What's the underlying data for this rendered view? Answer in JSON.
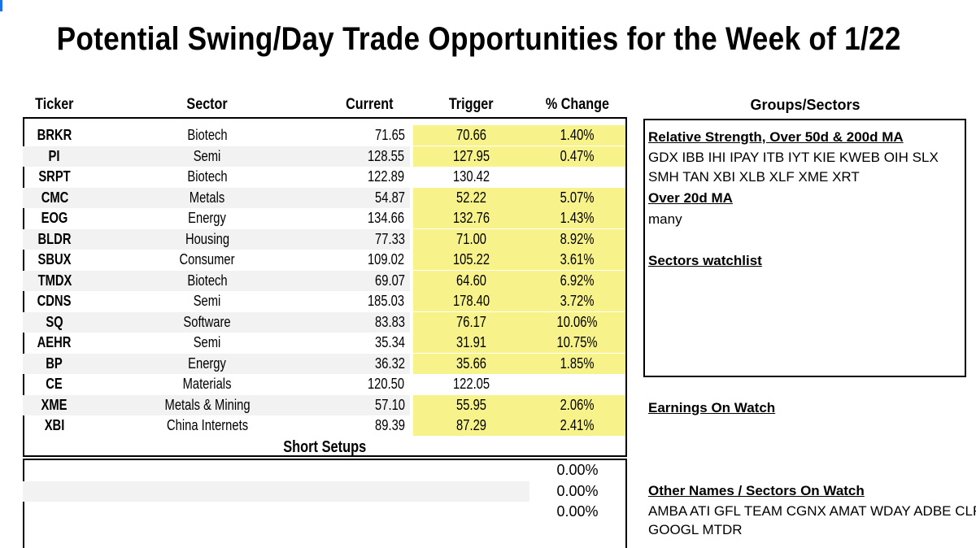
{
  "title": "Potential Swing/Day Trade Opportunities for the Week of 1/22",
  "columns": {
    "ticker": "Ticker",
    "sector": "Sector",
    "current": "Current",
    "trigger": "Trigger",
    "pct": "% Change"
  },
  "colors": {
    "highlight": "#f7f38a",
    "stripe": "#f2f2f2"
  },
  "rows": [
    {
      "ticker": "BRKR",
      "sector": "Biotech",
      "current": "71.65",
      "trigger": "70.66",
      "pct": "1.40%",
      "hl": true
    },
    {
      "ticker": "PI",
      "sector": "Semi",
      "current": "128.55",
      "trigger": "127.95",
      "pct": "0.47%",
      "hl": true
    },
    {
      "ticker": "SRPT",
      "sector": "Biotech",
      "current": "122.89",
      "trigger": "130.42",
      "pct": "",
      "hl": false
    },
    {
      "ticker": "CMC",
      "sector": "Metals",
      "current": "54.87",
      "trigger": "52.22",
      "pct": "5.07%",
      "hl": true
    },
    {
      "ticker": "EOG",
      "sector": "Energy",
      "current": "134.66",
      "trigger": "132.76",
      "pct": "1.43%",
      "hl": true
    },
    {
      "ticker": "BLDR",
      "sector": "Housing",
      "current": "77.33",
      "trigger": "71.00",
      "pct": "8.92%",
      "hl": true
    },
    {
      "ticker": "SBUX",
      "sector": "Consumer",
      "current": "109.02",
      "trigger": "105.22",
      "pct": "3.61%",
      "hl": true
    },
    {
      "ticker": "TMDX",
      "sector": "Biotech",
      "current": "69.07",
      "trigger": "64.60",
      "pct": "6.92%",
      "hl": true
    },
    {
      "ticker": "CDNS",
      "sector": "Semi",
      "current": "185.03",
      "trigger": "178.40",
      "pct": "3.72%",
      "hl": true
    },
    {
      "ticker": "SQ",
      "sector": "Software",
      "current": "83.83",
      "trigger": "76.17",
      "pct": "10.06%",
      "hl": true
    },
    {
      "ticker": "AEHR",
      "sector": "Semi",
      "current": "35.34",
      "trigger": "31.91",
      "pct": "10.75%",
      "hl": true
    },
    {
      "ticker": "BP",
      "sector": "Energy",
      "current": "36.32",
      "trigger": "35.66",
      "pct": "1.85%",
      "hl": true
    },
    {
      "ticker": "CE",
      "sector": "Materials",
      "current": "120.50",
      "trigger": "122.05",
      "pct": "",
      "hl": false
    },
    {
      "ticker": "XME",
      "sector": "Metals & Mining",
      "current": "57.10",
      "trigger": "55.95",
      "pct": "2.06%",
      "hl": true
    },
    {
      "ticker": "XBI",
      "sector": "China Internets",
      "current": "89.39",
      "trigger": "87.29",
      "pct": "2.41%",
      "hl": true
    }
  ],
  "short_setups": {
    "title": "Short Setups",
    "rows": [
      {
        "pct": "0.00%"
      },
      {
        "pct": "0.00%"
      },
      {
        "pct": "0.00%"
      }
    ]
  },
  "groups": {
    "title": "Groups/Sectors",
    "relative_strength_title": "Relative Strength, Over 50d & 200d MA",
    "relative_strength_line1": "GDX  IBB IHI IPAY ITB IYT KIE KWEB OIH SLX",
    "relative_strength_line2": "SMH TAN XBI XLB XLF XME XRT",
    "over20_title": "Over 20d MA ",
    "over20_text": "many",
    "watchlist_title": "Sectors watchlist"
  },
  "earnings_title": "Earnings On Watch",
  "other_names": {
    "title": "Other Names / Sectors On Watch",
    "line1": "AMBA ATI GFL TEAM CGNX AMAT WDAY ADBE CLF",
    "line2": "GOOGL MTDR"
  }
}
